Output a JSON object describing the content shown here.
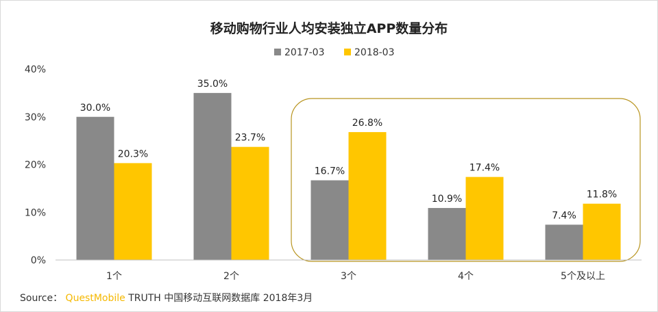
{
  "chart_data": {
    "type": "bar",
    "title": "移动购物行业人均安装独立APP数量分布",
    "categories": [
      "1个",
      "2个",
      "3个",
      "4个",
      "5个及以上"
    ],
    "series": [
      {
        "name": "2017-03",
        "color": "#898989",
        "values": [
          30.0,
          35.0,
          16.7,
          10.9,
          7.4
        ],
        "labels": [
          "30.0%",
          "35.0%",
          "16.7%",
          "10.9%",
          "7.4%"
        ]
      },
      {
        "name": "2018-03",
        "color": "#ffc600",
        "values": [
          20.3,
          23.7,
          26.8,
          17.4,
          11.8
        ],
        "labels": [
          "20.3%",
          "23.7%",
          "26.8%",
          "17.4%",
          "11.8%"
        ]
      }
    ],
    "ylim": [
      0,
      40
    ],
    "yticks": [
      0,
      10,
      20,
      30,
      40
    ],
    "ytick_labels": [
      "0%",
      "10%",
      "20%",
      "30%",
      "40%"
    ],
    "xlabel": "",
    "ylabel": "",
    "legend": "top-center",
    "highlight": {
      "categories": [
        "3个",
        "4个",
        "5个及以上"
      ],
      "color": "#b8941f"
    }
  },
  "source": {
    "prefix": "Source：",
    "brand": "QuestMobile",
    "rest": "TRUTH 中国移动互联网数据库 2018年3月"
  }
}
